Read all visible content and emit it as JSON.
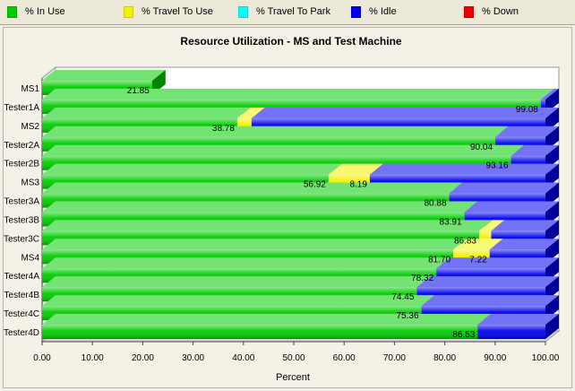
{
  "legend": [
    {
      "label": "% In Use",
      "color": "#00cc00"
    },
    {
      "label": "% Travel To Use",
      "color": "#f2f200"
    },
    {
      "label": "% Travel To Park",
      "color": "#00ffff"
    },
    {
      "label": "% Idle",
      "color": "#0000ee"
    },
    {
      "label": "% Down",
      "color": "#ee0000"
    }
  ],
  "chart_data": {
    "type": "bar",
    "orientation": "horizontal",
    "stacked": true,
    "title": "Resource Utilization - MS and Test Machine",
    "xlabel": "Percent",
    "ylabel": "",
    "xlim": [
      0,
      100
    ],
    "x_ticks": [
      "0.00",
      "10.00",
      "20.00",
      "30.00",
      "40.00",
      "50.00",
      "60.00",
      "70.00",
      "80.00",
      "90.00",
      "100.00"
    ],
    "grid": false,
    "legend_position": "top",
    "categories": [
      "MS1",
      "Tester1A",
      "MS2",
      "Tester2A",
      "Tester2B",
      "MS3",
      "Tester3A",
      "Tester3B",
      "Tester3C",
      "MS4",
      "Tester4A",
      "Tester4B",
      "Tester4C",
      "Tester4D"
    ],
    "series": [
      {
        "name": "% In Use",
        "color": "#00cc00",
        "values": [
          21.85,
          99.08,
          38.78,
          90.04,
          93.16,
          56.92,
          80.88,
          83.91,
          86.83,
          81.7,
          78.32,
          74.45,
          75.36,
          86.53
        ],
        "labels": [
          "21.85",
          "99.08",
          "38.78",
          "90.04",
          "93.16",
          "56.92",
          "80.88",
          "83.91",
          "86.83",
          "81.70",
          "78.32",
          "74.45",
          "75.36",
          "86.53"
        ]
      },
      {
        "name": "% Travel To Use",
        "color": "#f2f200",
        "values": [
          0,
          0,
          2.83,
          0,
          0,
          8.19,
          0,
          0,
          2.4,
          7.22,
          0,
          0,
          0,
          0
        ],
        "labels": [
          "",
          "",
          "",
          "",
          "",
          "8.19",
          "",
          "",
          "",
          "7.22",
          "",
          "",
          "",
          ""
        ]
      },
      {
        "name": "% Travel To Park",
        "color": "#00ffff",
        "values": [
          0,
          0,
          0,
          0,
          0,
          0,
          0,
          0,
          0,
          0,
          0,
          0,
          0,
          0
        ],
        "labels": [
          "",
          "",
          "",
          "",
          "",
          "",
          "",
          "",
          "",
          "",
          "",
          "",
          "",
          ""
        ]
      },
      {
        "name": "% Idle",
        "color": "#0000ee",
        "values": [
          0,
          0.92,
          58.39,
          9.96,
          6.84,
          34.89,
          19.12,
          16.09,
          10.77,
          11.08,
          21.68,
          25.55,
          24.64,
          13.47
        ],
        "labels": [
          "",
          "",
          "",
          "",
          "",
          "",
          "",
          "",
          "",
          "",
          "",
          "",
          "",
          ""
        ]
      },
      {
        "name": "% Down",
        "color": "#ee0000",
        "values": [
          0,
          0,
          0,
          0,
          0,
          0,
          0,
          0,
          0,
          0,
          0,
          0,
          0,
          0
        ],
        "labels": [
          "",
          "",
          "",
          "",
          "",
          "",
          "",
          "",
          "",
          "",
          "",
          "",
          "",
          ""
        ]
      }
    ]
  }
}
